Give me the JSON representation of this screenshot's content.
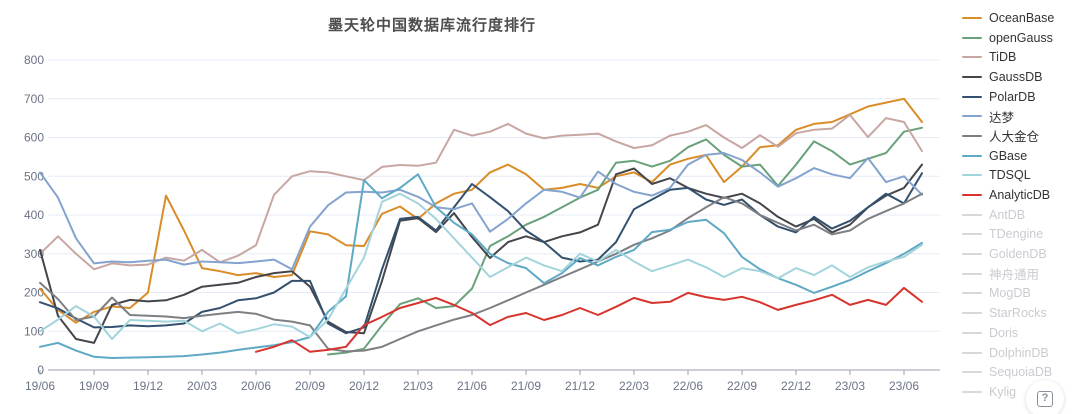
{
  "title": "墨天轮中国数据库流行度排行",
  "help_button": {
    "icon": "question-mark-icon"
  },
  "chart_data": {
    "type": "line",
    "title": "墨天轮中国数据库流行度排行",
    "xlabel": "",
    "ylabel": "",
    "ylim": [
      0,
      800
    ],
    "y_ticks": [
      0,
      100,
      200,
      300,
      400,
      500,
      600,
      700,
      800
    ],
    "grid": "horizontal",
    "legend_position": "right",
    "x": [
      "19/06",
      "19/07",
      "19/08",
      "19/09",
      "19/10",
      "19/11",
      "19/12",
      "20/01",
      "20/02",
      "20/03",
      "20/04",
      "20/05",
      "20/06",
      "20/07",
      "20/08",
      "20/09",
      "20/10",
      "20/11",
      "20/12",
      "21/01",
      "21/02",
      "21/03",
      "21/04",
      "21/05",
      "21/06",
      "21/07",
      "21/08",
      "21/09",
      "21/10",
      "21/11",
      "21/12",
      "22/01",
      "22/02",
      "22/03",
      "22/04",
      "22/05",
      "22/06",
      "22/07",
      "22/08",
      "22/09",
      "22/10",
      "22/11",
      "22/12",
      "23/01",
      "23/02",
      "23/03",
      "23/04",
      "23/05",
      "23/06",
      "23/07"
    ],
    "x_tick_labels": [
      "19/06",
      "19/09",
      "19/12",
      "20/03",
      "20/06",
      "20/09",
      "20/12",
      "21/03",
      "21/06",
      "21/09",
      "21/12",
      "22/03",
      "22/06",
      "22/09",
      "22/12",
      "23/03",
      "23/06"
    ],
    "series": [
      {
        "name": "OceanBase",
        "color": "#D98C28",
        "enabled": true,
        "values": [
          210,
          155,
          122,
          150,
          164,
          160,
          200,
          450,
          360,
          263,
          255,
          245,
          250,
          240,
          245,
          358,
          350,
          322,
          320,
          403,
          422,
          390,
          430,
          455,
          465,
          510,
          530,
          505,
          465,
          470,
          480,
          470,
          500,
          510,
          485,
          530,
          545,
          555,
          485,
          525,
          575,
          580,
          620,
          635,
          640,
          660,
          680,
          690,
          700,
          640
        ]
      },
      {
        "name": "openGauss",
        "color": "#69A17B",
        "enabled": true,
        "values": [
          null,
          null,
          null,
          null,
          null,
          null,
          null,
          null,
          null,
          null,
          null,
          null,
          null,
          null,
          null,
          null,
          40,
          45,
          55,
          115,
          170,
          185,
          160,
          165,
          210,
          320,
          345,
          375,
          395,
          420,
          445,
          465,
          535,
          540,
          525,
          540,
          575,
          595,
          555,
          525,
          530,
          475,
          530,
          590,
          565,
          530,
          545,
          560,
          615,
          625
        ]
      },
      {
        "name": "TiDB",
        "color": "#C8A6A2",
        "enabled": true,
        "values": [
          300,
          345,
          300,
          260,
          275,
          270,
          272,
          290,
          282,
          310,
          278,
          295,
          322,
          452,
          500,
          513,
          510,
          500,
          490,
          524,
          529,
          527,
          535,
          620,
          605,
          615,
          635,
          610,
          598,
          605,
          607,
          610,
          590,
          573,
          580,
          605,
          615,
          632,
          600,
          573,
          606,
          576,
          611,
          620,
          623,
          658,
          601,
          650,
          640,
          565
        ]
      },
      {
        "name": "GaussDB",
        "color": "#45464C",
        "enabled": true,
        "values": [
          310,
          140,
          80,
          70,
          168,
          181,
          177,
          180,
          194,
          215,
          220,
          225,
          240,
          250,
          255,
          215,
          125,
          98,
          95,
          230,
          385,
          392,
          356,
          405,
          343,
          289,
          330,
          345,
          330,
          345,
          355,
          375,
          505,
          520,
          480,
          495,
          470,
          455,
          444,
          455,
          430,
          395,
          370,
          390,
          355,
          375,
          420,
          450,
          470,
          530
        ]
      },
      {
        "name": "PolarDB",
        "color": "#33516F",
        "enabled": true,
        "values": [
          175,
          159,
          133,
          110,
          111,
          115,
          113,
          115,
          120,
          150,
          160,
          180,
          185,
          200,
          230,
          230,
          120,
          95,
          110,
          260,
          390,
          395,
          360,
          420,
          480,
          446,
          410,
          360,
          330,
          290,
          280,
          285,
          330,
          415,
          440,
          465,
          470,
          440,
          426,
          440,
          400,
          370,
          355,
          395,
          365,
          385,
          420,
          455,
          430,
          508
        ]
      },
      {
        "name": "达梦",
        "color": "#84A3CE",
        "enabled": true,
        "values": [
          510,
          445,
          340,
          275,
          280,
          278,
          282,
          285,
          272,
          280,
          278,
          276,
          280,
          285,
          260,
          370,
          425,
          458,
          460,
          458,
          465,
          447,
          420,
          415,
          430,
          357,
          390,
          430,
          465,
          460,
          445,
          512,
          480,
          460,
          450,
          470,
          530,
          555,
          560,
          542,
          510,
          473,
          495,
          521,
          505,
          495,
          547,
          485,
          500,
          452
        ]
      },
      {
        "name": "人大金仓",
        "color": "#7D7F83",
        "enabled": true,
        "values": [
          225,
          183,
          129,
          138,
          187,
          142,
          140,
          138,
          134,
          140,
          145,
          150,
          145,
          130,
          125,
          115,
          55,
          48,
          50,
          60,
          80,
          100,
          115,
          130,
          142,
          160,
          180,
          200,
          220,
          240,
          260,
          280,
          300,
          323,
          340,
          360,
          392,
          420,
          446,
          430,
          400,
          380,
          360,
          375,
          350,
          360,
          390,
          410,
          430,
          455
        ]
      },
      {
        "name": "GBase",
        "color": "#5FA9C4",
        "enabled": true,
        "values": [
          60,
          70,
          50,
          34,
          31,
          32,
          33,
          34,
          36,
          40,
          45,
          52,
          58,
          64,
          72,
          85,
          150,
          190,
          490,
          443,
          470,
          505,
          420,
          380,
          350,
          300,
          276,
          263,
          224,
          250,
          289,
          270,
          292,
          310,
          356,
          362,
          382,
          388,
          353,
          292,
          260,
          237,
          220,
          199,
          215,
          232,
          255,
          276,
          300,
          328
        ]
      },
      {
        "name": "TDSQL",
        "color": "#A3D4DC",
        "enabled": true,
        "values": [
          100,
          130,
          165,
          138,
          80,
          129,
          127,
          125,
          127,
          100,
          120,
          95,
          105,
          118,
          112,
          85,
          130,
          210,
          290,
          434,
          455,
          430,
          390,
          340,
          290,
          240,
          265,
          290,
          270,
          255,
          300,
          280,
          310,
          280,
          255,
          270,
          285,
          265,
          240,
          263,
          255,
          237,
          263,
          245,
          270,
          240,
          265,
          280,
          292,
          323
        ]
      },
      {
        "name": "AnalyticDB",
        "color": "#D7342E",
        "enabled": true,
        "values": [
          null,
          null,
          null,
          null,
          null,
          null,
          null,
          null,
          null,
          null,
          null,
          null,
          47,
          60,
          77,
          47,
          52,
          60,
          116,
          137,
          160,
          173,
          186,
          168,
          147,
          116,
          137,
          147,
          129,
          142,
          160,
          142,
          163,
          186,
          173,
          176,
          199,
          188,
          181,
          189,
          175,
          155,
          168,
          180,
          194,
          168,
          181,
          168,
          212,
          176
        ]
      },
      {
        "name": "AntDB",
        "color": "#D8D8D8",
        "enabled": false,
        "values": []
      },
      {
        "name": "TDengine",
        "color": "#D8D8D8",
        "enabled": false,
        "values": []
      },
      {
        "name": "GoldenDB",
        "color": "#D8D8D8",
        "enabled": false,
        "values": []
      },
      {
        "name": "神舟通用",
        "color": "#D8D8D8",
        "enabled": false,
        "values": []
      },
      {
        "name": "MogDB",
        "color": "#D8D8D8",
        "enabled": false,
        "values": []
      },
      {
        "name": "StarRocks",
        "color": "#D8D8D8",
        "enabled": false,
        "values": []
      },
      {
        "name": "Doris",
        "color": "#D8D8D8",
        "enabled": false,
        "values": []
      },
      {
        "name": "DolphinDB",
        "color": "#D8D8D8",
        "enabled": false,
        "values": []
      },
      {
        "name": "SequoiaDB",
        "color": "#D8D8D8",
        "enabled": false,
        "values": []
      },
      {
        "name": "Kylig",
        "color": "#D8D8D8",
        "enabled": false,
        "values": []
      }
    ]
  },
  "style": {
    "grid_color": "#E6ECF5",
    "axis_color": "#9AA0AC",
    "tick_text_color": "#6A7386"
  }
}
